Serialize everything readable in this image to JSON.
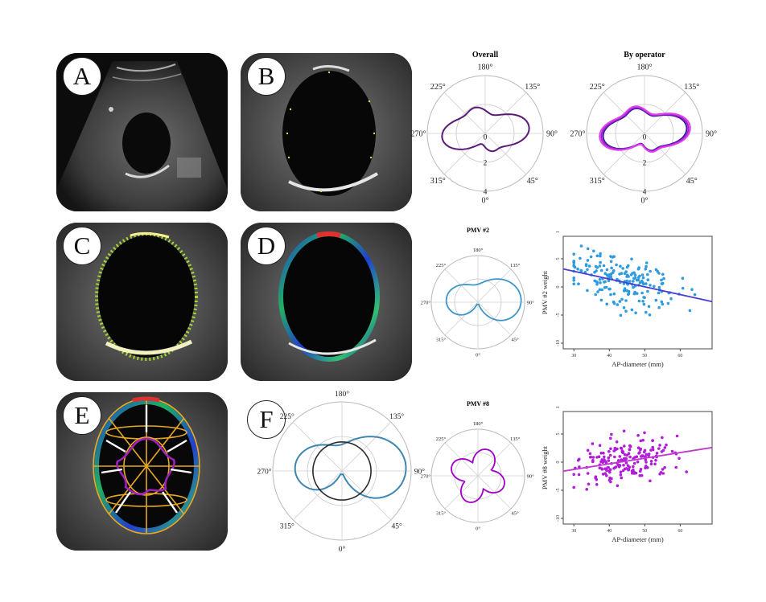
{
  "panels": {
    "A": {
      "label": "A"
    },
    "B": {
      "label": "B"
    },
    "C": {
      "label": "C"
    },
    "D": {
      "label": "D"
    },
    "E": {
      "label": "E"
    },
    "F": {
      "label": "F"
    }
  },
  "polar_overall": {
    "title": "Overall",
    "angle_labels": [
      "180°",
      "135°",
      "90°",
      "45°",
      "0°",
      "315°",
      "270°",
      "225°"
    ],
    "radial_labels": [
      "0",
      "2",
      "4"
    ],
    "color": "#5b1a78"
  },
  "polar_operator": {
    "title": "By operator",
    "angle_labels": [
      "180°",
      "135°",
      "90°",
      "45°",
      "0°",
      "315°",
      "270°",
      "225°"
    ],
    "radial_labels": [
      "0",
      "2",
      "4"
    ],
    "colors": [
      "#3a1fa8",
      "#b020c8",
      "#e040f0"
    ]
  },
  "polar_pmv2": {
    "title": "PMV #2",
    "angle_labels": [
      "180°",
      "135°",
      "90°",
      "45°",
      "0°",
      "315°",
      "270°",
      "225°"
    ],
    "color": "#3f96c8"
  },
  "polar_pmv8": {
    "title": "PMV #8",
    "angle_labels": [
      "180°",
      "135°",
      "90°",
      "45°",
      "0°",
      "315°",
      "270°",
      "225°"
    ],
    "color": "#a000c8"
  },
  "polar_F": {
    "angle_labels": [
      "180°",
      "135°",
      "90°",
      "45°",
      "0°",
      "315°",
      "270°",
      "225°"
    ],
    "colors": [
      "#3f86b0",
      "#2a2a2a"
    ]
  },
  "chart_data": [
    {
      "type": "scatter",
      "xlabel": "AP-diameter (mm)",
      "ylabel": "PMV #2 weight",
      "xticks": [
        "30",
        "40",
        "50",
        "60"
      ],
      "yticks": [
        "-10",
        "-5",
        "0",
        "5",
        "10"
      ],
      "xlim": [
        27,
        69
      ],
      "ylim": [
        -11,
        9
      ],
      "trend": {
        "x": [
          27,
          69
        ],
        "y": [
          3.2,
          -2.6
        ]
      },
      "point_color": "#2e9be0",
      "line_color": "#4a3fd0",
      "seed": 7,
      "n_points": 190
    },
    {
      "type": "scatter",
      "xlabel": "AP-diameter (mm)",
      "ylabel": "PMV #8 weight",
      "xticks": [
        "30",
        "40",
        "50",
        "60"
      ],
      "yticks": [
        "-10",
        "-5",
        "0",
        "5",
        "10"
      ],
      "xlim": [
        27,
        69
      ],
      "ylim": [
        -11,
        9
      ],
      "trend": {
        "x": [
          27,
          69
        ],
        "y": [
          -1.6,
          2.6
        ]
      },
      "point_color": "#b01ed6",
      "line_color": "#c03ad0",
      "seed": 13,
      "n_points": 190
    }
  ]
}
